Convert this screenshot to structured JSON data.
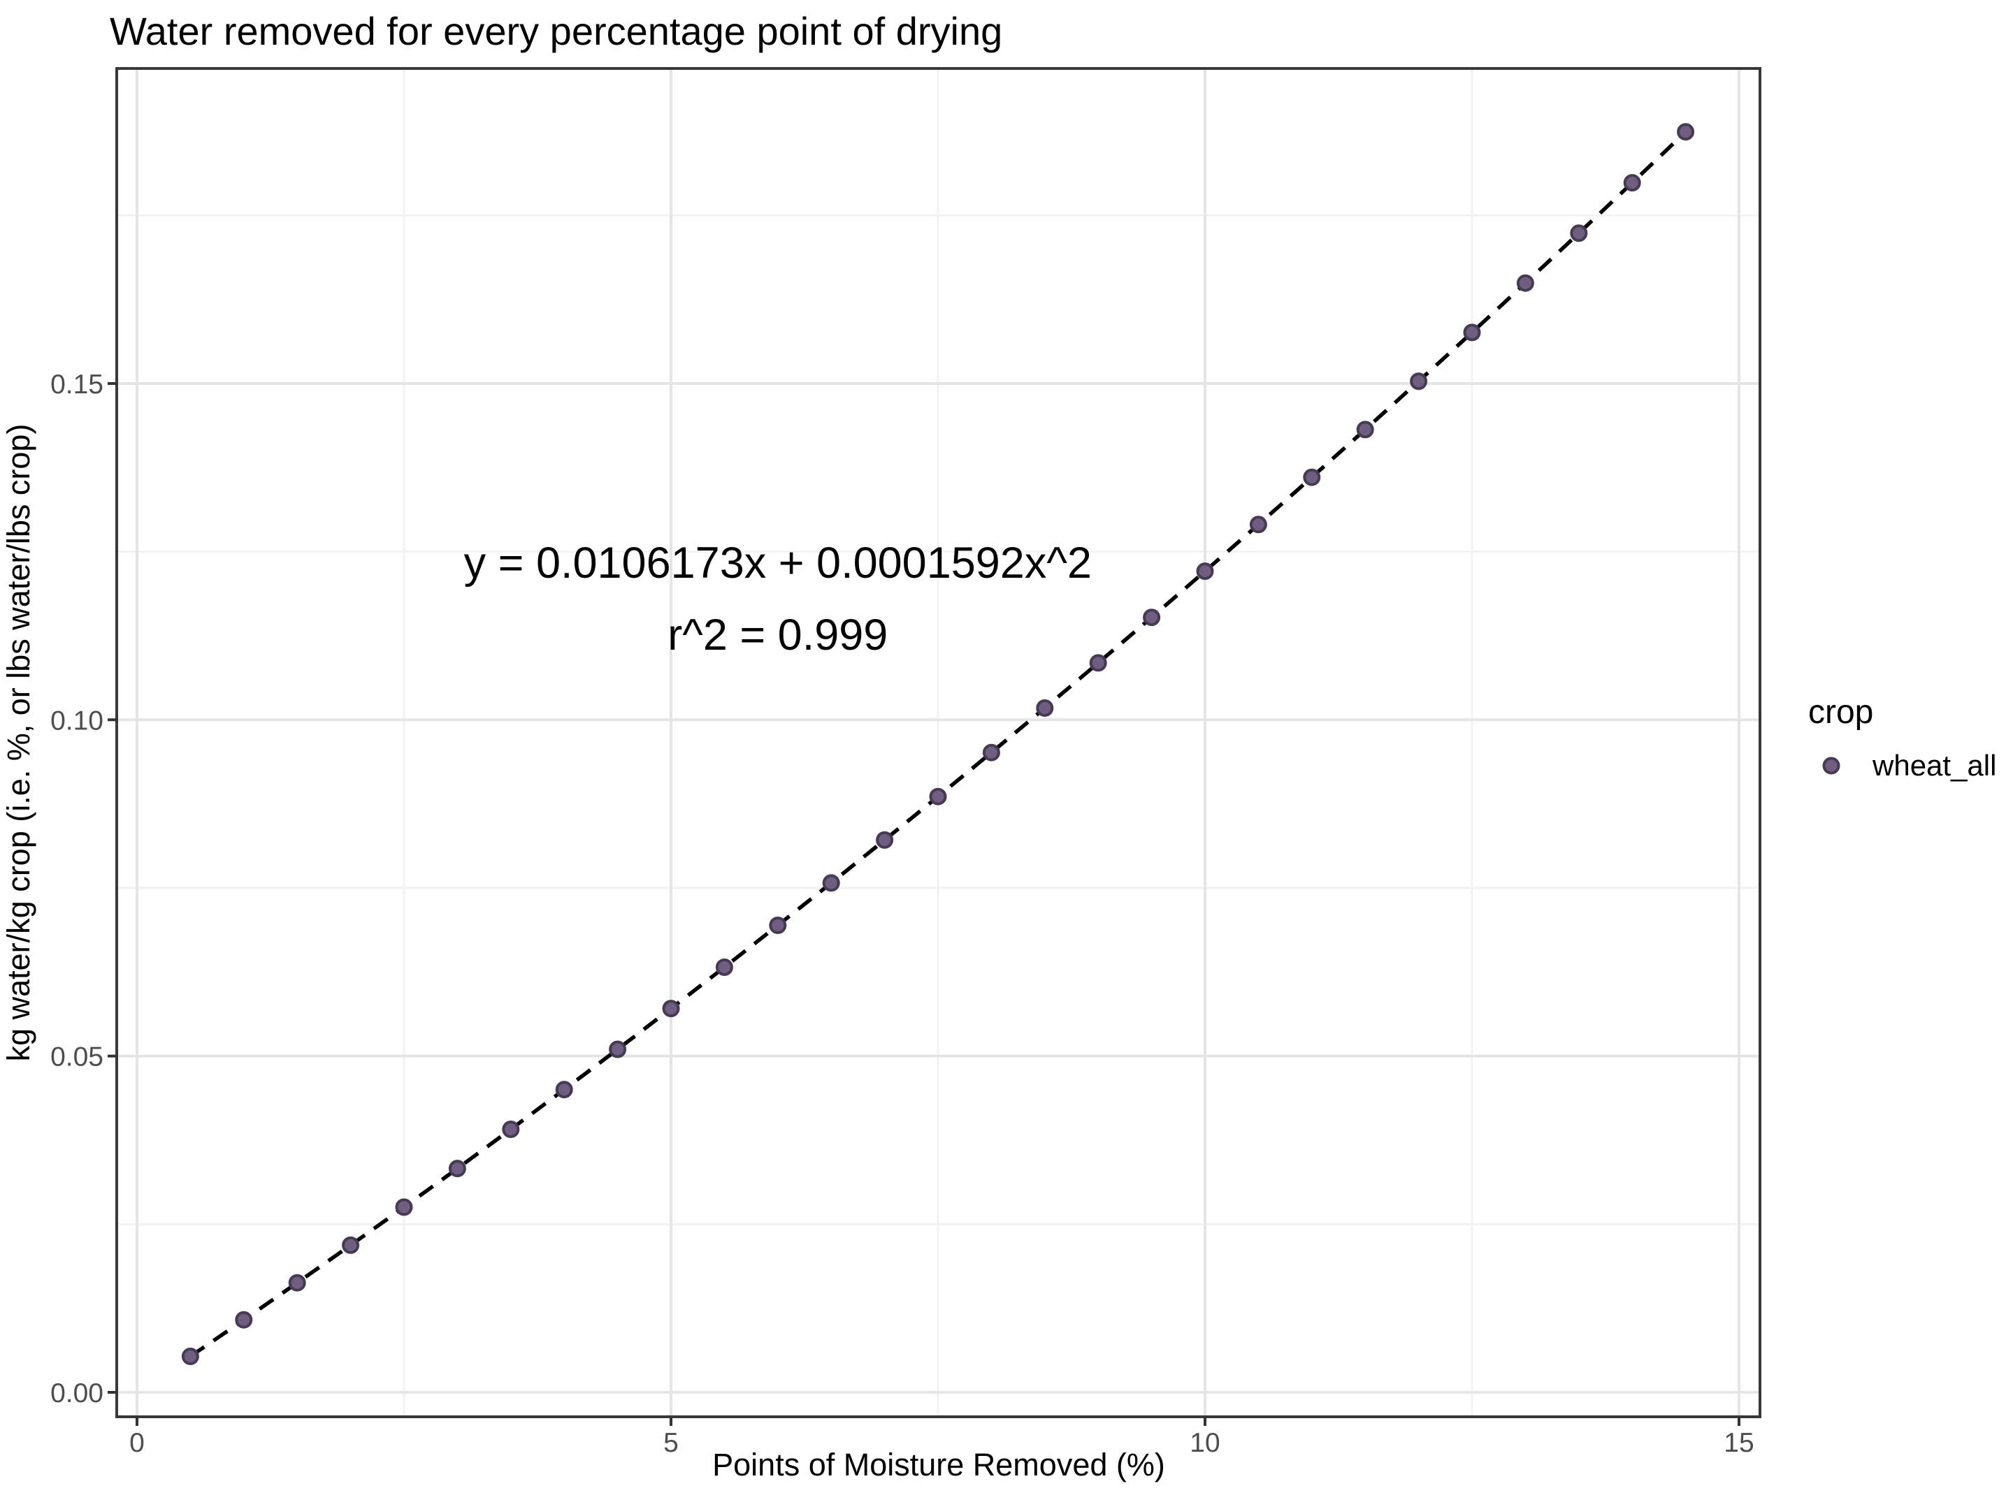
{
  "title": "Water removed for every percentage point of drying",
  "chart_data": {
    "type": "scatter",
    "title": "Water removed for every percentage point of drying",
    "xlabel": "Points of Moisture Removed (%)",
    "ylabel": "kg water/kg crop (i.e. %, or lbs water/lbs crop)",
    "xlim": [
      -0.2,
      15.2
    ],
    "ylim": [
      -0.0038,
      0.1965
    ],
    "x_major_ticks": [
      0,
      5,
      10,
      15
    ],
    "x_tick_labels": [
      "0",
      "5",
      "10",
      "15"
    ],
    "x_minor_ticks": [
      2.5,
      7.5,
      12.5
    ],
    "y_major_ticks": [
      0,
      0.05,
      0.1,
      0.15
    ],
    "y_tick_labels": [
      "0.00",
      "0.05",
      "0.10",
      "0.15"
    ],
    "y_minor_ticks": [
      0.025,
      0.075,
      0.125,
      0.175
    ],
    "grid": "major-and-minor",
    "legend": {
      "position": "right",
      "title": "crop",
      "entries": [
        {
          "label": "wheat_all",
          "marker": "circle"
        }
      ]
    },
    "series": [
      {
        "name": "wheat_all",
        "marker": "circle",
        "points": [
          [
            0.5,
            0.005348
          ],
          [
            1.0,
            0.010777
          ],
          [
            1.5,
            0.016284
          ],
          [
            2.0,
            0.021871
          ],
          [
            2.5,
            0.027538
          ],
          [
            3.0,
            0.033285
          ],
          [
            3.5,
            0.039111
          ],
          [
            4.0,
            0.045016
          ],
          [
            4.5,
            0.051002
          ],
          [
            5.0,
            0.057067
          ],
          [
            5.5,
            0.063211
          ],
          [
            6.0,
            0.069435
          ],
          [
            6.5,
            0.075739
          ],
          [
            7.0,
            0.082122
          ],
          [
            7.5,
            0.088585
          ],
          [
            8.0,
            0.095127
          ],
          [
            8.5,
            0.101749
          ],
          [
            9.0,
            0.108451
          ],
          [
            9.5,
            0.115232
          ],
          [
            10.0,
            0.122093
          ],
          [
            10.5,
            0.129033
          ],
          [
            11.0,
            0.136054
          ],
          [
            11.5,
            0.143153
          ],
          [
            12.0,
            0.150332
          ],
          [
            12.5,
            0.157591
          ],
          [
            13.0,
            0.16493
          ],
          [
            13.5,
            0.172348
          ],
          [
            14.0,
            0.179845
          ],
          [
            14.5,
            0.187423
          ]
        ]
      }
    ],
    "fit_line": {
      "model": "quadratic",
      "coefficients": {
        "b1": 0.0106173,
        "b2": 0.0001592
      },
      "style": "dashed",
      "x_range": [
        0.5,
        14.5
      ]
    },
    "annotation": {
      "line1": "y = 0.0106173x + 0.0001592x^2",
      "line2": "r^2 = 0.999",
      "x": 6.0,
      "y1": 0.1234,
      "y2": 0.1127
    }
  },
  "colors": {
    "background": "#ffffff",
    "panel_background": "#ffffff",
    "panel_border": "#383838",
    "grid_major": "#e5e5e5",
    "grid_minor": "#f2f2f2",
    "tick_mark": "#333333",
    "tick_label": "#4d4d4d",
    "text": "#000000",
    "fit_line": "#000000",
    "point_fill": "#6f5e80",
    "point_stroke": "#473a54"
  }
}
